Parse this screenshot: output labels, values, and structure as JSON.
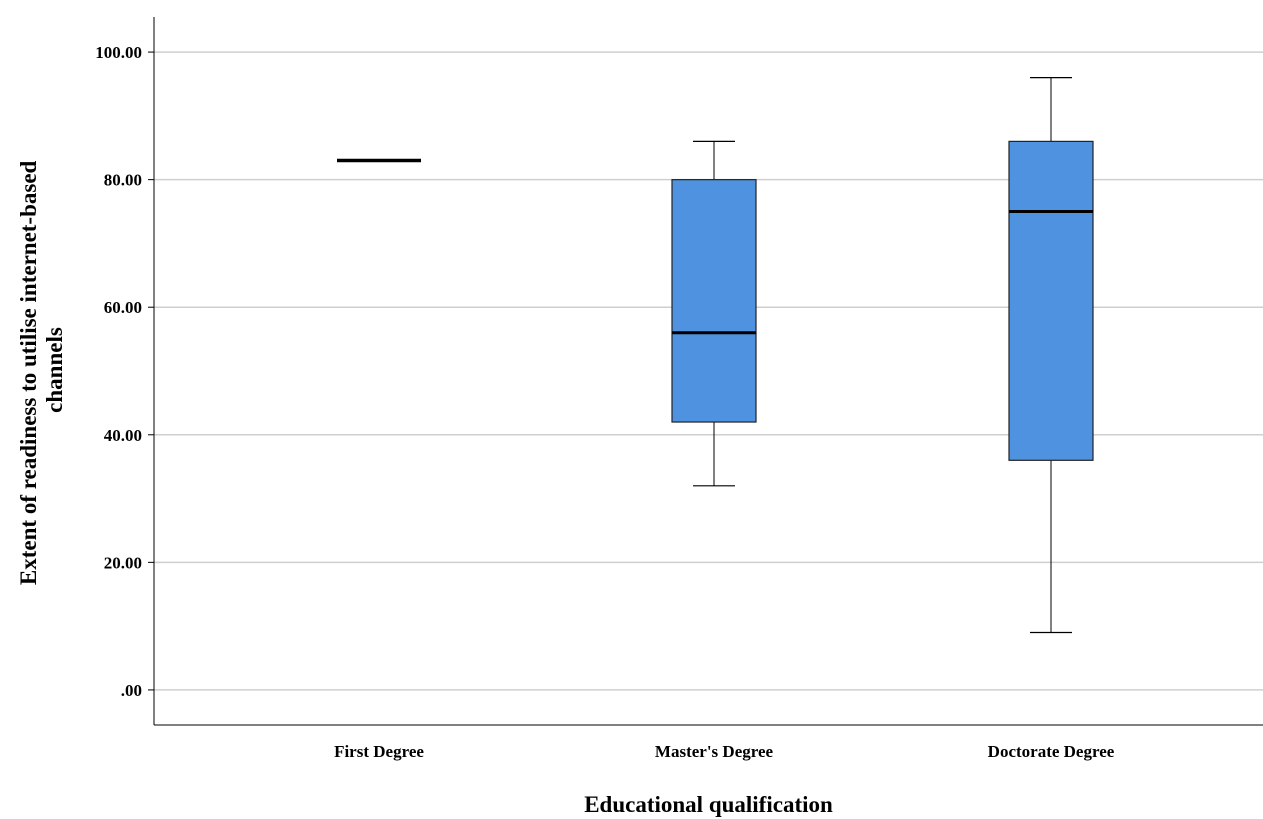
{
  "chart_data": {
    "type": "boxplot",
    "title": "",
    "xlabel": "Educational qualification",
    "ylabel_lines": [
      "Extent of readiness to utilise internet-based",
      "channels"
    ],
    "ylim": [
      -5.5,
      105.5
    ],
    "yticks": [
      0,
      20,
      40,
      60,
      80,
      100
    ],
    "ytick_labels": [
      ".00",
      "20.00",
      "40.00",
      "60.00",
      "80.00",
      "100.00"
    ],
    "grid": true,
    "box_color": "#4f92e0",
    "categories": [
      "First Degree",
      "Master's Degree",
      "Doctorate Degree"
    ],
    "boxes": [
      {
        "category": "First Degree",
        "min": 83,
        "q1": 83,
        "median": 83,
        "q3": 83,
        "max": 83
      },
      {
        "category": "Master's Degree",
        "min": 32,
        "q1": 42,
        "median": 56,
        "q3": 80,
        "max": 86
      },
      {
        "category": "Doctorate Degree",
        "min": 9,
        "q1": 36,
        "median": 75,
        "q3": 86,
        "max": 96
      }
    ]
  }
}
